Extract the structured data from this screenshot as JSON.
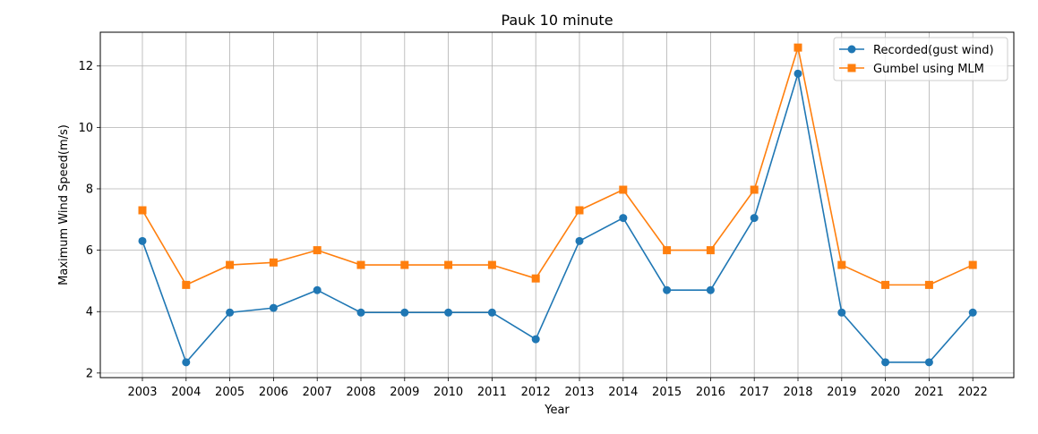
{
  "chart_data": {
    "type": "line",
    "title": "Pauk 10 minute",
    "xlabel": "Year",
    "ylabel": "Maximum Wind Speed(m/s)",
    "categories": [
      "2003",
      "2004",
      "2005",
      "2006",
      "2007",
      "2008",
      "2009",
      "2010",
      "2011",
      "2012",
      "2013",
      "2014",
      "2015",
      "2016",
      "2017",
      "2018",
      "2019",
      "2020",
      "2021",
      "2022"
    ],
    "ylim": [
      1.85,
      13.1
    ],
    "yticks": [
      2,
      4,
      6,
      8,
      10,
      12
    ],
    "grid": true,
    "legend_position": "top-right",
    "series": [
      {
        "name": "Recorded(gust wind)",
        "color": "#1f77b4",
        "marker": "circle",
        "values": [
          6.3,
          2.35,
          3.97,
          4.12,
          4.7,
          3.97,
          3.97,
          3.97,
          3.97,
          3.1,
          6.3,
          7.05,
          4.7,
          4.7,
          7.05,
          11.75,
          3.97,
          2.35,
          2.35,
          3.97
        ]
      },
      {
        "name": "Gumbel using MLM",
        "color": "#ff7f0e",
        "marker": "square",
        "values": [
          7.3,
          4.87,
          5.52,
          5.6,
          6.0,
          5.52,
          5.52,
          5.52,
          5.52,
          5.08,
          7.3,
          7.97,
          6.0,
          6.0,
          7.97,
          12.6,
          5.52,
          4.87,
          4.87,
          5.52
        ]
      }
    ]
  }
}
